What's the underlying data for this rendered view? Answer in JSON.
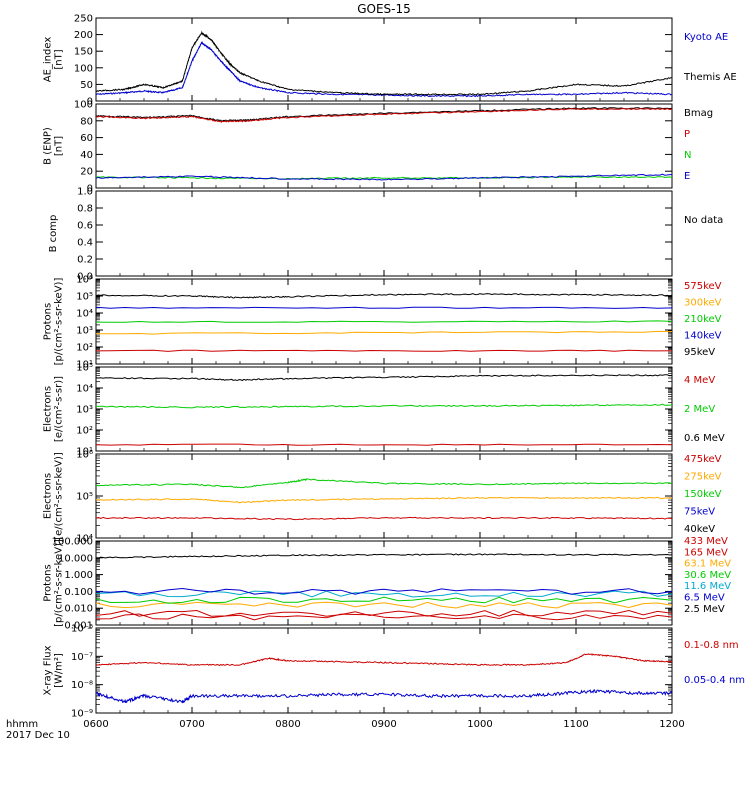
{
  "title": "GOES-15",
  "footer": {
    "line1": "hhmm",
    "line2": "2017 Dec 10"
  },
  "x_ticks": [
    "0600",
    "0700",
    "0800",
    "0900",
    "1000",
    "1100",
    "1200"
  ],
  "chart_data": [
    {
      "type": "line",
      "id": "ae",
      "ylabel": [
        "AE_index",
        "[nT]"
      ],
      "ylim": [
        0,
        250
      ],
      "yticks": [
        "0",
        "50",
        "100",
        "150",
        "200",
        "250"
      ],
      "series": [
        {
          "name": "Kyoto AE",
          "color": "#0000cc",
          "x": [
            6.0,
            6.3,
            6.5,
            6.7,
            6.9,
            7.0,
            7.1,
            7.2,
            7.3,
            7.4,
            7.5,
            7.7,
            8.0,
            8.5,
            9.0,
            9.5,
            10.0,
            10.5,
            11.0,
            11.5,
            12.0
          ],
          "y": [
            20,
            25,
            30,
            25,
            40,
            120,
            175,
            155,
            120,
            90,
            60,
            40,
            25,
            20,
            18,
            15,
            15,
            20,
            20,
            25,
            20
          ]
        },
        {
          "name": "Themis AE",
          "color": "#000000",
          "x": [
            6.0,
            6.3,
            6.5,
            6.7,
            6.9,
            7.0,
            7.1,
            7.2,
            7.3,
            7.4,
            7.5,
            7.7,
            8.0,
            8.5,
            9.0,
            9.5,
            10.0,
            10.5,
            11.0,
            11.5,
            12.0
          ],
          "y": [
            30,
            35,
            50,
            40,
            60,
            160,
            205,
            185,
            145,
            110,
            85,
            60,
            35,
            25,
            20,
            20,
            20,
            30,
            50,
            45,
            70
          ]
        }
      ]
    },
    {
      "type": "line",
      "id": "bfield",
      "ylabel": [
        "B (ENP)",
        "[nT]"
      ],
      "ylim": [
        0,
        100
      ],
      "yticks": [
        "0",
        "20",
        "40",
        "60",
        "80",
        "100"
      ],
      "series": [
        {
          "name": "Bmag",
          "color": "#000000",
          "x": [
            6.0,
            6.5,
            7.0,
            7.3,
            7.6,
            8.0,
            9.0,
            10.0,
            11.0,
            12.0
          ],
          "y": [
            86,
            84,
            86,
            80,
            81,
            85,
            89,
            92,
            95,
            95
          ]
        },
        {
          "name": "P",
          "color": "#cc0000",
          "x": [
            6.0,
            6.5,
            7.0,
            7.3,
            7.6,
            8.0,
            9.0,
            10.0,
            11.0,
            12.0
          ],
          "y": [
            85,
            83,
            85,
            79,
            80,
            84,
            88,
            91,
            94,
            94
          ]
        },
        {
          "name": "N",
          "color": "#00cc00",
          "x": [
            6.0,
            7.0,
            8.0,
            9.0,
            10.0,
            11.0,
            12.0
          ],
          "y": [
            13,
            12,
            11,
            12,
            12,
            13,
            13
          ]
        },
        {
          "name": "E",
          "color": "#0000cc",
          "x": [
            6.0,
            7.0,
            8.0,
            9.0,
            10.0,
            11.0,
            12.0
          ],
          "y": [
            12,
            14,
            11,
            10,
            12,
            14,
            16
          ]
        }
      ]
    },
    {
      "type": "line",
      "id": "bcomp",
      "ylabel": [
        "B comp"
      ],
      "ylim": [
        0,
        1
      ],
      "yticks": [
        "0.0",
        "0.2",
        "0.4",
        "0.6",
        "0.8",
        "1.0"
      ],
      "note": "No data",
      "series": []
    },
    {
      "type": "line",
      "id": "protons_kev",
      "log": true,
      "ylabel": [
        "Protons",
        "[p/(cm²-s-sr-keV)]"
      ],
      "ylim": [
        10,
        1000000
      ],
      "yticks": [
        "10¹",
        "10²",
        "10³",
        "10⁴",
        "10⁵",
        "10⁶"
      ],
      "series": [
        {
          "name": "575keV",
          "color": "#cc0000",
          "x": [
            6,
            12
          ],
          "y": [
            60,
            60
          ]
        },
        {
          "name": "300keV",
          "color": "#ffaa00",
          "x": [
            6,
            12
          ],
          "y": [
            600,
            800
          ]
        },
        {
          "name": "210keV",
          "color": "#00cc00",
          "x": [
            6,
            12
          ],
          "y": [
            3000,
            3200
          ]
        },
        {
          "name": "140keV",
          "color": "#0000cc",
          "x": [
            6,
            12
          ],
          "y": [
            20000,
            20000
          ]
        },
        {
          "name": "95keV",
          "color": "#000000",
          "x": [
            6,
            7,
            7.5,
            8,
            9,
            10,
            11,
            12
          ],
          "y": [
            110000,
            100000,
            80000,
            90000,
            120000,
            130000,
            120000,
            110000
          ]
        }
      ]
    },
    {
      "type": "line",
      "id": "electrons_mev",
      "log": true,
      "ylabel": [
        "Electrons",
        "[e/(cm²-s-sr)]"
      ],
      "ylim": [
        10,
        100000
      ],
      "yticks": [
        "10¹",
        "10²",
        "10³",
        "10⁴",
        "10⁵"
      ],
      "series": [
        {
          "name": "4 MeV",
          "color": "#cc0000",
          "x": [
            6,
            12
          ],
          "y": [
            20,
            20
          ]
        },
        {
          "name": "2 MeV",
          "color": "#00cc00",
          "x": [
            6,
            7,
            8,
            9,
            10,
            11,
            12
          ],
          "y": [
            1300,
            1200,
            1300,
            1400,
            1400,
            1500,
            1600
          ]
        },
        {
          "name": "0.6 MeV",
          "color": "#000000",
          "x": [
            6,
            7,
            7.5,
            8,
            9,
            10,
            11,
            12
          ],
          "y": [
            30000,
            28000,
            24000,
            28000,
            32000,
            38000,
            40000,
            40000
          ]
        }
      ]
    },
    {
      "type": "line",
      "id": "electrons_kev",
      "log": true,
      "ylabel": [
        "Electrons",
        "[e/(cm²-s-sr-keV)]"
      ],
      "ylim": [
        10000,
        1000000
      ],
      "yticks": [
        "10⁴",
        "10⁵",
        "10⁶"
      ],
      "series": [
        {
          "name": "475keV",
          "color": "#cc0000",
          "x": [
            6,
            7,
            8,
            9,
            10,
            11,
            12
          ],
          "y": [
            30000,
            30000,
            28000,
            30000,
            30000,
            30000,
            29000
          ]
        },
        {
          "name": "275keV",
          "color": "#ffaa00",
          "x": [
            6,
            7,
            7.5,
            8,
            9,
            10,
            11,
            12
          ],
          "y": [
            80000,
            85000,
            70000,
            80000,
            85000,
            90000,
            90000,
            90000
          ]
        },
        {
          "name": "150keV",
          "color": "#00cc00",
          "x": [
            6,
            7,
            7.5,
            8,
            8.2,
            9,
            10,
            11,
            12
          ],
          "y": [
            180000,
            190000,
            160000,
            210000,
            250000,
            200000,
            190000,
            200000,
            200000
          ]
        },
        {
          "name": "75keV",
          "color": "#0000cc",
          "x": [],
          "y": []
        },
        {
          "name": "40keV",
          "color": "#000000",
          "x": [],
          "y": []
        }
      ]
    },
    {
      "type": "line",
      "id": "protons_mev",
      "log": true,
      "ylabel": [
        "Protons",
        "[p/(cm²-s-sr-keV)]"
      ],
      "ylim": [
        0.001,
        100
      ],
      "yticks": [
        "0.001",
        "0.010",
        "0.100",
        "1.000",
        "10.000",
        "100.000"
      ],
      "series": [
        {
          "name": "433 MeV",
          "color": "#cc0000",
          "x": [
            6,
            12
          ],
          "y": [
            0.003,
            0.003
          ]
        },
        {
          "name": "165 MeV",
          "color": "#cc0000",
          "x": [
            6,
            12
          ],
          "y": [
            0.005,
            0.005
          ]
        },
        {
          "name": "63.1 MeV",
          "color": "#ffaa00",
          "x": [
            6,
            12
          ],
          "y": [
            0.015,
            0.015
          ]
        },
        {
          "name": "30.6 MeV",
          "color": "#00cc00",
          "x": [
            6,
            12
          ],
          "y": [
            0.03,
            0.03
          ]
        },
        {
          "name": "11.6 MeV",
          "color": "#00aacc",
          "x": [
            6,
            12
          ],
          "y": [
            0.07,
            0.07
          ]
        },
        {
          "name": "6.5 MeV",
          "color": "#0000cc",
          "x": [
            6,
            12
          ],
          "y": [
            0.1,
            0.1
          ]
        },
        {
          "name": "2.5 MeV",
          "color": "#000000",
          "x": [
            6,
            7,
            8,
            9,
            10,
            11,
            12
          ],
          "y": [
            10,
            12,
            14,
            15,
            16,
            15,
            15
          ]
        }
      ]
    },
    {
      "type": "line",
      "id": "xray",
      "log": true,
      "ylabel": [
        "X-ray Flux",
        "[W/m²]"
      ],
      "ylim": [
        1e-09,
        1e-06
      ],
      "yticks": [
        "10⁻⁹",
        "10⁻⁸",
        "10⁻⁷",
        "10⁻⁶"
      ],
      "series": [
        {
          "name": "0.1-0.8 nm",
          "color": "#cc0000",
          "x": [
            6,
            6.5,
            7,
            7.5,
            7.8,
            8,
            8.5,
            9,
            9.5,
            10,
            10.5,
            10.9,
            11.1,
            11.4,
            11.7,
            12
          ],
          "y": [
            5e-08,
            6e-08,
            5e-08,
            5e-08,
            8.5e-08,
            7e-08,
            6.5e-08,
            6e-08,
            5.5e-08,
            5e-08,
            5e-08,
            6e-08,
            1.2e-07,
            1e-07,
            7e-08,
            6.5e-08
          ]
        },
        {
          "name": "0.05-0.4 nm",
          "color": "#0000cc",
          "x": [
            6,
            6.3,
            6.5,
            6.9,
            7,
            7.5,
            8,
            8.5,
            9,
            9.5,
            10,
            10.5,
            10.9,
            11.2,
            11.6,
            12
          ],
          "y": [
            5e-09,
            2.5e-09,
            4e-09,
            2.5e-09,
            4e-09,
            4e-09,
            4e-09,
            4.5e-09,
            4.5e-09,
            4e-09,
            4e-09,
            4e-09,
            5e-09,
            6e-09,
            5e-09,
            5e-09
          ]
        }
      ]
    }
  ],
  "right_labels": [
    {
      "panel": "ae",
      "items": [
        {
          "text": "Kyoto AE",
          "color": "#0000cc"
        },
        {
          "text": "Themis AE",
          "color": "#000000"
        }
      ]
    },
    {
      "panel": "bfield",
      "items": [
        {
          "text": "Bmag",
          "color": "#000000"
        },
        {
          "text": "P",
          "color": "#cc0000"
        },
        {
          "text": "N",
          "color": "#00cc00"
        },
        {
          "text": "E",
          "color": "#0000cc"
        }
      ]
    },
    {
      "panel": "bcomp",
      "items": [
        {
          "text": "No data",
          "color": "#000000"
        }
      ]
    },
    {
      "panel": "protons_kev",
      "items": [
        {
          "text": "575keV",
          "color": "#cc0000"
        },
        {
          "text": "300keV",
          "color": "#ffaa00"
        },
        {
          "text": "210keV",
          "color": "#00cc00"
        },
        {
          "text": "140keV",
          "color": "#0000cc"
        },
        {
          "text": "95keV",
          "color": "#000000"
        }
      ]
    },
    {
      "panel": "electrons_mev",
      "items": [
        {
          "text": "4 MeV",
          "color": "#cc0000"
        },
        {
          "text": "2 MeV",
          "color": "#00cc00"
        },
        {
          "text": "0.6 MeV",
          "color": "#000000"
        }
      ]
    },
    {
      "panel": "electrons_kev",
      "items": [
        {
          "text": "475keV",
          "color": "#cc0000"
        },
        {
          "text": "275keV",
          "color": "#ffaa00"
        },
        {
          "text": "150keV",
          "color": "#00cc00"
        },
        {
          "text": "75keV",
          "color": "#0000cc"
        },
        {
          "text": "40keV",
          "color": "#000000"
        }
      ]
    },
    {
      "panel": "protons_mev",
      "items": [
        {
          "text": "433 MeV",
          "color": "#cc0000"
        },
        {
          "text": "165 MeV",
          "color": "#cc0000"
        },
        {
          "text": "63.1 MeV",
          "color": "#ffaa00"
        },
        {
          "text": "30.6 MeV",
          "color": "#00cc00"
        },
        {
          "text": "11.6 MeV",
          "color": "#00aacc"
        },
        {
          "text": "6.5 MeV",
          "color": "#0000cc"
        },
        {
          "text": "2.5 MeV",
          "color": "#000000"
        }
      ]
    },
    {
      "panel": "xray",
      "items": [
        {
          "text": "0.1-0.8 nm",
          "color": "#cc0000"
        },
        {
          "text": "0.05-0.4 nm",
          "color": "#0000cc"
        }
      ]
    }
  ]
}
